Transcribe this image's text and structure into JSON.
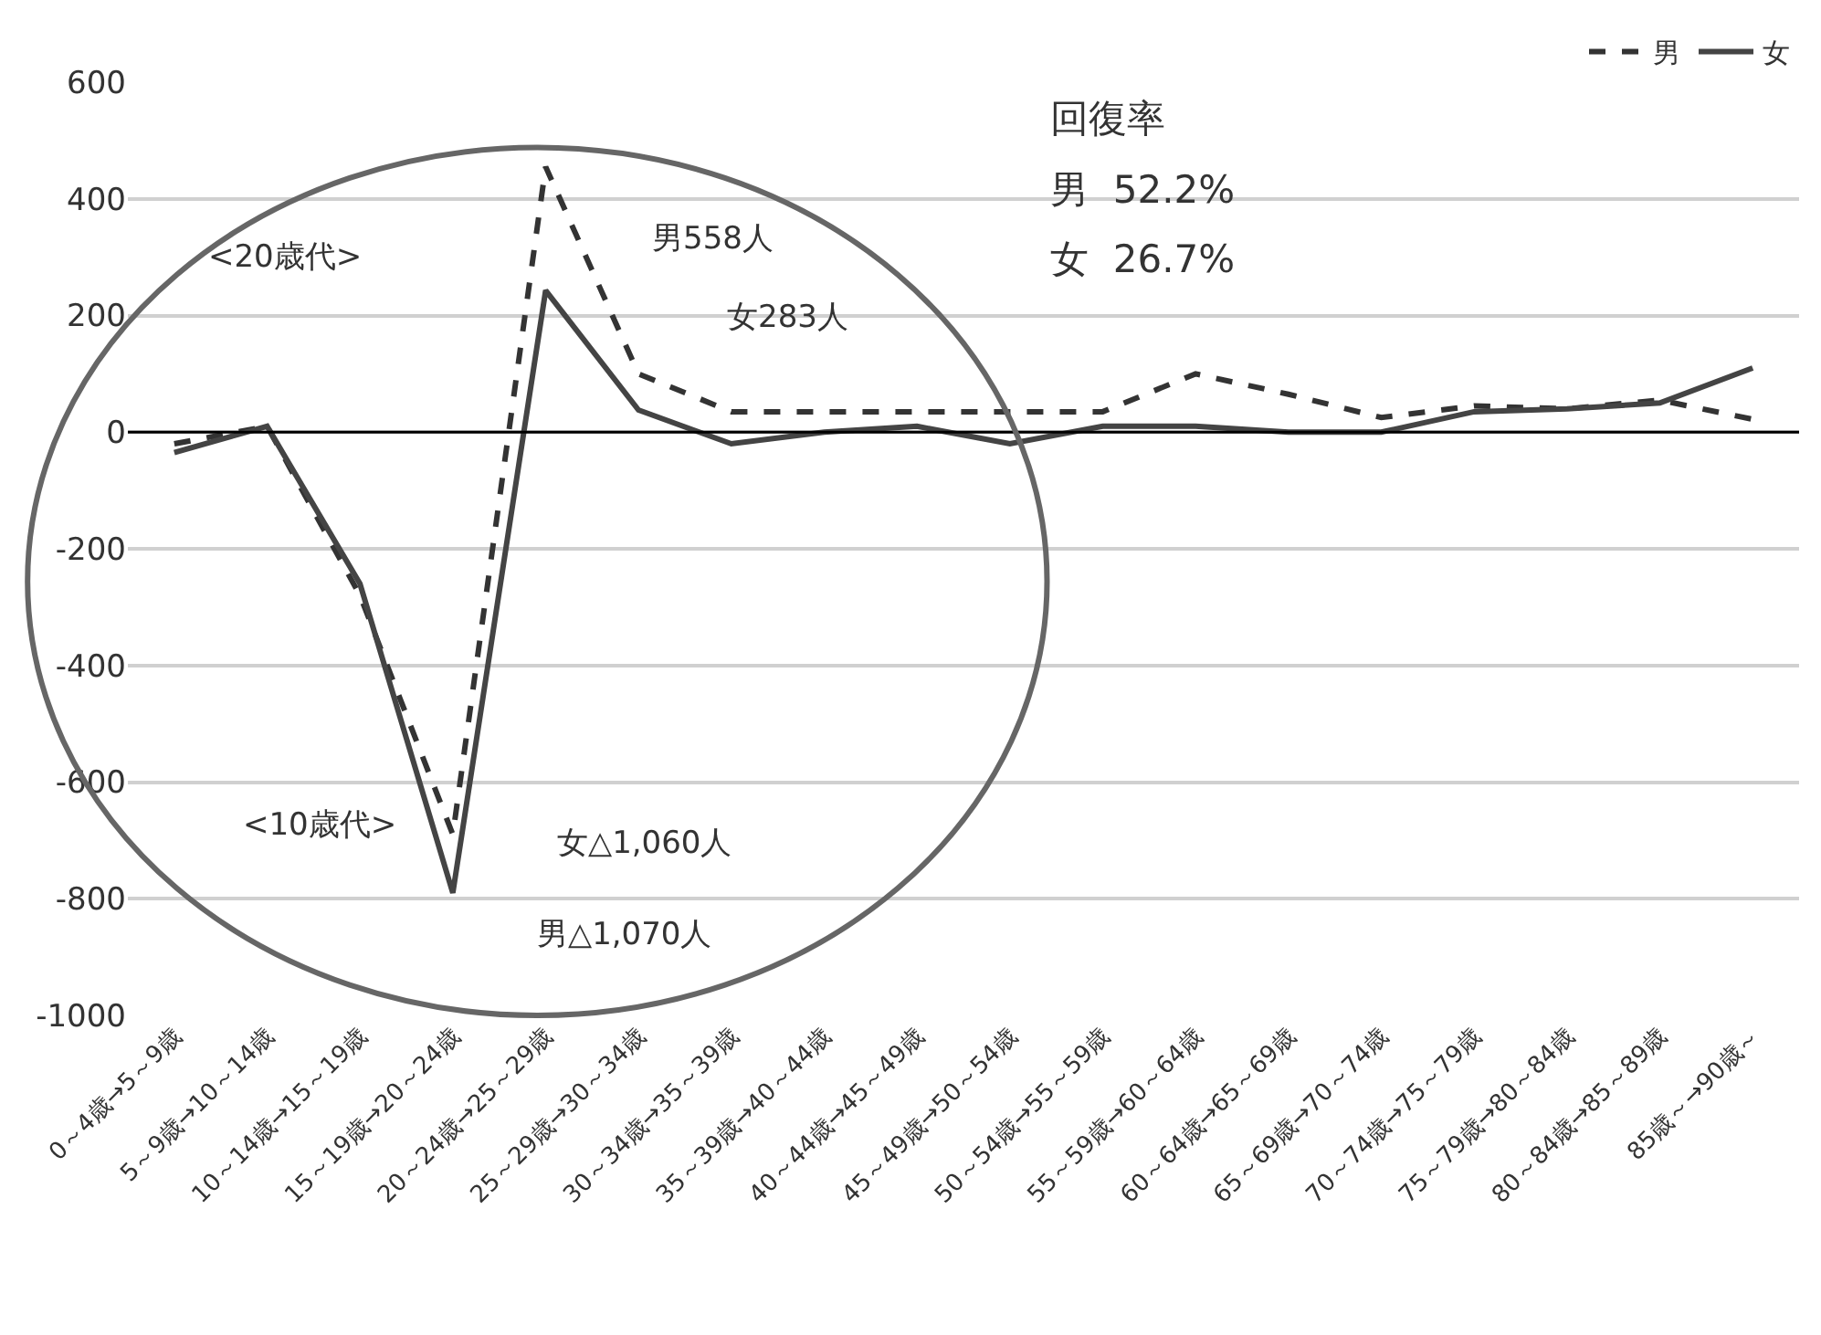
{
  "chart_data": {
    "type": "line",
    "categories": [
      "0～4歳→5～9歳",
      "5～9歳→10～14歳",
      "10～14歳→15～19歳",
      "15～19歳→20～24歳",
      "20～24歳→25～29歳",
      "25～29歳→30～34歳",
      "30～34歳→35～39歳",
      "35～39歳→40～44歳",
      "40～44歳→45～49歳",
      "45～49歳→50～54歳",
      "50～54歳→55～59歳",
      "55～59歳→60～64歳",
      "60～64歳→65～69歳",
      "65～69歳→70～74歳",
      "70～74歳→75～79歳",
      "75～79歳→80～84歳",
      "80～84歳→85～89歳",
      "85歳～→90歳～"
    ],
    "series": [
      {
        "name": "男",
        "color": "#333333",
        "line_style": "dashed",
        "values": [
          -20,
          10,
          -280,
          -690,
          455,
          100,
          35,
          35,
          35,
          35,
          35,
          100,
          65,
          25,
          45,
          40,
          55,
          22
        ]
      },
      {
        "name": "女",
        "color": "#444444",
        "line_style": "solid",
        "values": [
          -35,
          10,
          -260,
          -790,
          243,
          38,
          -20,
          0,
          10,
          -20,
          10,
          10,
          0,
          0,
          35,
          40,
          50,
          110
        ]
      }
    ],
    "ylim": [
      -1000,
      600
    ],
    "yticks": [
      -1000,
      -800,
      -600,
      -400,
      -200,
      0,
      200,
      400,
      600
    ],
    "grid": "y",
    "legend": "top right",
    "marker": "none",
    "ref_lines": [
      {
        "axis": "y",
        "value": 0,
        "color": "#000000",
        "line_style": "solid"
      }
    ],
    "annotations": [
      "<20歳代>",
      "男558人",
      "女283人",
      "<10歳代>",
      "女△1,060人",
      "男△1,070人",
      "回復率",
      "男  52.2%",
      "女  26.7%"
    ]
  }
}
